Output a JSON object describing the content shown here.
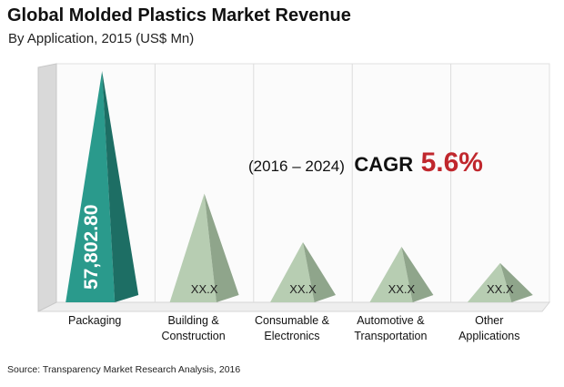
{
  "title": "Global Molded Plastics Market Revenue",
  "subtitle": "By Application,  2015 (US$ Mn)",
  "cagr": {
    "period": "(2016 – 2024)",
    "label": "CAGR",
    "value": "5.6%"
  },
  "source": "Source:  Transparency Market Research Analysis, 2016",
  "colors": {
    "lead": "#2a9a8c",
    "other": "#b7cdb2",
    "cagr": "#c0272d"
  },
  "chart_data": {
    "type": "bar",
    "categories": [
      "Packaging",
      "Building & Construction",
      "Consumable & Electronics",
      "Automotive & Transportation",
      "Other Applications"
    ],
    "category_lines": [
      [
        "Packaging"
      ],
      [
        "Building &",
        "Construction"
      ],
      [
        "Consumable &",
        "Electronics"
      ],
      [
        "Automotive &",
        "Transportation"
      ],
      [
        "Other",
        "Applications"
      ]
    ],
    "values": [
      57802.8,
      null,
      null,
      null,
      null
    ],
    "data_labels": [
      "57,802.80",
      "XX.X",
      "XX.X",
      "XX.X",
      "XX.X"
    ],
    "relative_heights": [
      1.0,
      0.47,
      0.26,
      0.24,
      0.17
    ],
    "grid": true
  }
}
